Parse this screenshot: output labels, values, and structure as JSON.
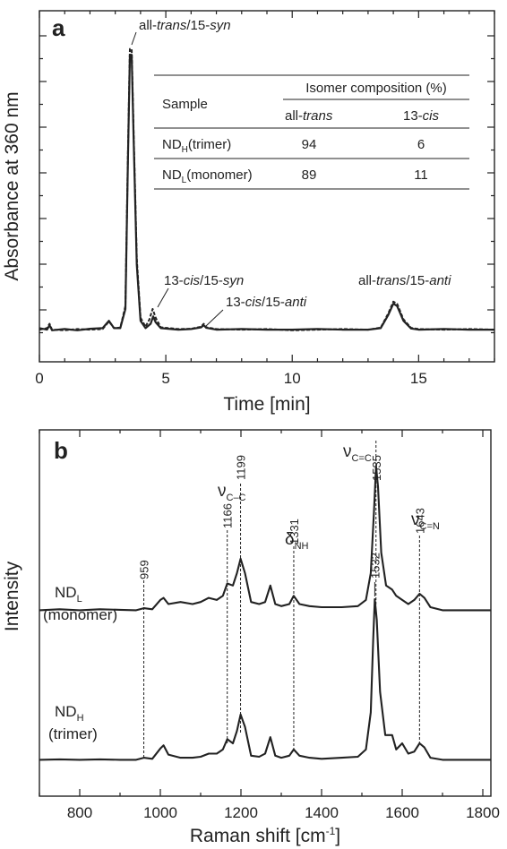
{
  "chart_data": [
    {
      "panel": "a",
      "type": "line",
      "xlabel": "Time [min]",
      "ylabel": "Absorbance at 360 nm",
      "xlim": [
        0,
        18
      ],
      "xticks": [
        "0",
        "5",
        "10",
        "15"
      ],
      "series": [
        {
          "style": "solid",
          "points": [
            [
              0,
              0.035
            ],
            [
              0.3,
              0.03
            ],
            [
              0.4,
              0.045
            ],
            [
              0.5,
              0.028
            ],
            [
              1,
              0.032
            ],
            [
              1.5,
              0.028
            ],
            [
              2,
              0.033
            ],
            [
              2.5,
              0.035
            ],
            [
              2.75,
              0.06
            ],
            [
              2.95,
              0.035
            ],
            [
              3.2,
              0.035
            ],
            [
              3.4,
              0.1
            ],
            [
              3.5,
              0.6
            ],
            [
              3.58,
              0.96
            ],
            [
              3.65,
              0.96
            ],
            [
              3.72,
              0.7
            ],
            [
              3.85,
              0.25
            ],
            [
              4.0,
              0.06
            ],
            [
              4.2,
              0.035
            ],
            [
              4.4,
              0.05
            ],
            [
              4.5,
              0.075
            ],
            [
              4.6,
              0.055
            ],
            [
              4.8,
              0.035
            ],
            [
              5.5,
              0.03
            ],
            [
              6.0,
              0.032
            ],
            [
              6.4,
              0.038
            ],
            [
              6.5,
              0.045
            ],
            [
              6.6,
              0.036
            ],
            [
              7,
              0.03
            ],
            [
              8,
              0.032
            ],
            [
              9,
              0.03
            ],
            [
              10,
              0.03
            ],
            [
              11,
              0.032
            ],
            [
              12,
              0.03
            ],
            [
              13,
              0.03
            ],
            [
              13.5,
              0.035
            ],
            [
              13.8,
              0.08
            ],
            [
              14.0,
              0.118
            ],
            [
              14.15,
              0.11
            ],
            [
              14.4,
              0.06
            ],
            [
              14.7,
              0.034
            ],
            [
              15,
              0.03
            ],
            [
              16,
              0.032
            ],
            [
              17,
              0.03
            ],
            [
              18,
              0.03
            ]
          ]
        },
        {
          "style": "dashed",
          "points": [
            [
              0,
              0.03
            ],
            [
              0.3,
              0.035
            ],
            [
              0.4,
              0.05
            ],
            [
              0.5,
              0.03
            ],
            [
              1,
              0.028
            ],
            [
              1.5,
              0.032
            ],
            [
              2,
              0.03
            ],
            [
              2.5,
              0.032
            ],
            [
              2.75,
              0.058
            ],
            [
              2.95,
              0.035
            ],
            [
              3.2,
              0.037
            ],
            [
              3.4,
              0.11
            ],
            [
              3.5,
              0.62
            ],
            [
              3.58,
              0.98
            ],
            [
              3.65,
              0.98
            ],
            [
              3.72,
              0.72
            ],
            [
              3.85,
              0.27
            ],
            [
              4.0,
              0.07
            ],
            [
              4.2,
              0.04
            ],
            [
              4.35,
              0.065
            ],
            [
              4.48,
              0.1
            ],
            [
              4.6,
              0.07
            ],
            [
              4.8,
              0.038
            ],
            [
              5.5,
              0.032
            ],
            [
              6.0,
              0.033
            ],
            [
              6.4,
              0.04
            ],
            [
              6.5,
              0.05
            ],
            [
              6.6,
              0.038
            ],
            [
              7,
              0.032
            ],
            [
              8,
              0.03
            ],
            [
              9,
              0.032
            ],
            [
              10,
              0.028
            ],
            [
              11,
              0.03
            ],
            [
              12,
              0.032
            ],
            [
              13,
              0.03
            ],
            [
              13.5,
              0.037
            ],
            [
              13.8,
              0.085
            ],
            [
              14.0,
              0.125
            ],
            [
              14.15,
              0.118
            ],
            [
              14.4,
              0.065
            ],
            [
              14.7,
              0.036
            ],
            [
              15,
              0.032
            ],
            [
              16,
              0.03
            ],
            [
              17,
              0.032
            ],
            [
              18,
              0.03
            ]
          ]
        }
      ],
      "annotations": [
        {
          "text": "all-trans/15-syn",
          "x": 3.6
        },
        {
          "text": "13-cis/15-syn",
          "x": 4.5
        },
        {
          "text": "13-cis/15-anti",
          "x": 6.5
        },
        {
          "text": "all-trans/15-anti",
          "x": 14.0
        }
      ],
      "table": {
        "col_sample": "Sample",
        "col_group": "Isomer composition (%)",
        "col_alltrans": "all-trans",
        "col_13cis": "13-cis",
        "rows": [
          {
            "sample_main": "ND",
            "sample_sub": "H",
            "sample_rest": "(trimer)",
            "alltrans": "94",
            "cis13": "6"
          },
          {
            "sample_main": "ND",
            "sample_sub": "L",
            "sample_rest": "(monomer)",
            "alltrans": "89",
            "cis13": "11"
          }
        ]
      }
    },
    {
      "panel": "b",
      "type": "line",
      "xlabel": "Raman shift [cm",
      "xlabel_sup": "-1",
      "xlabel_end": "]",
      "ylabel": "Intensity",
      "xlim": [
        700,
        1820
      ],
      "xticks": [
        "800",
        "1000",
        "1200",
        "1400",
        "1600",
        "1800"
      ],
      "series": [
        {
          "name_main": "ND",
          "name_sub": "L",
          "name_rest": "(monomer)",
          "points": [
            [
              700,
              0.02
            ],
            [
              750,
              0.025
            ],
            [
              800,
              0.02
            ],
            [
              850,
              0.025
            ],
            [
              900,
              0.022
            ],
            [
              940,
              0.02
            ],
            [
              959,
              0.03
            ],
            [
              980,
              0.025
            ],
            [
              1000,
              0.07
            ],
            [
              1008,
              0.08
            ],
            [
              1020,
              0.05
            ],
            [
              1050,
              0.06
            ],
            [
              1080,
              0.05
            ],
            [
              1100,
              0.06
            ],
            [
              1120,
              0.08
            ],
            [
              1140,
              0.07
            ],
            [
              1155,
              0.09
            ],
            [
              1166,
              0.15
            ],
            [
              1180,
              0.14
            ],
            [
              1190,
              0.2
            ],
            [
              1199,
              0.27
            ],
            [
              1210,
              0.2
            ],
            [
              1225,
              0.06
            ],
            [
              1245,
              0.05
            ],
            [
              1260,
              0.06
            ],
            [
              1273,
              0.14
            ],
            [
              1285,
              0.05
            ],
            [
              1300,
              0.04
            ],
            [
              1320,
              0.05
            ],
            [
              1331,
              0.09
            ],
            [
              1345,
              0.05
            ],
            [
              1370,
              0.04
            ],
            [
              1400,
              0.035
            ],
            [
              1450,
              0.035
            ],
            [
              1490,
              0.04
            ],
            [
              1510,
              0.07
            ],
            [
              1522,
              0.2
            ],
            [
              1530,
              0.5
            ],
            [
              1535,
              0.72
            ],
            [
              1540,
              0.62
            ],
            [
              1548,
              0.3
            ],
            [
              1560,
              0.14
            ],
            [
              1575,
              0.12
            ],
            [
              1585,
              0.09
            ],
            [
              1600,
              0.07
            ],
            [
              1615,
              0.05
            ],
            [
              1630,
              0.07
            ],
            [
              1643,
              0.1
            ],
            [
              1655,
              0.08
            ],
            [
              1670,
              0.035
            ],
            [
              1700,
              0.02
            ],
            [
              1750,
              0.02
            ],
            [
              1800,
              0.02
            ],
            [
              1820,
              0.02
            ]
          ]
        },
        {
          "name_main": "ND",
          "name_sub": "H",
          "name_rest": "(trimer)",
          "points": [
            [
              700,
              0.02
            ],
            [
              750,
              0.022
            ],
            [
              800,
              0.02
            ],
            [
              850,
              0.022
            ],
            [
              900,
              0.02
            ],
            [
              940,
              0.02
            ],
            [
              959,
              0.03
            ],
            [
              980,
              0.025
            ],
            [
              1000,
              0.075
            ],
            [
              1008,
              0.09
            ],
            [
              1020,
              0.045
            ],
            [
              1050,
              0.03
            ],
            [
              1080,
              0.03
            ],
            [
              1100,
              0.035
            ],
            [
              1120,
              0.05
            ],
            [
              1140,
              0.05
            ],
            [
              1155,
              0.07
            ],
            [
              1166,
              0.12
            ],
            [
              1180,
              0.1
            ],
            [
              1190,
              0.16
            ],
            [
              1199,
              0.24
            ],
            [
              1210,
              0.18
            ],
            [
              1225,
              0.04
            ],
            [
              1245,
              0.035
            ],
            [
              1260,
              0.05
            ],
            [
              1273,
              0.13
            ],
            [
              1285,
              0.04
            ],
            [
              1300,
              0.03
            ],
            [
              1320,
              0.04
            ],
            [
              1331,
              0.07
            ],
            [
              1345,
              0.04
            ],
            [
              1370,
              0.03
            ],
            [
              1400,
              0.025
            ],
            [
              1450,
              0.03
            ],
            [
              1490,
              0.035
            ],
            [
              1510,
              0.07
            ],
            [
              1522,
              0.25
            ],
            [
              1528,
              0.6
            ],
            [
              1532,
              0.8
            ],
            [
              1537,
              0.7
            ],
            [
              1545,
              0.35
            ],
            [
              1558,
              0.14
            ],
            [
              1575,
              0.14
            ],
            [
              1585,
              0.07
            ],
            [
              1600,
              0.1
            ],
            [
              1615,
              0.05
            ],
            [
              1630,
              0.06
            ],
            [
              1643,
              0.1
            ],
            [
              1655,
              0.08
            ],
            [
              1670,
              0.03
            ],
            [
              1700,
              0.02
            ],
            [
              1750,
              0.02
            ],
            [
              1800,
              0.02
            ],
            [
              1820,
              0.02
            ]
          ]
        }
      ],
      "peak_labels": [
        "959",
        "1166",
        "1199",
        "1331",
        "1535",
        "1643",
        "1532"
      ],
      "modes": [
        {
          "symbol": "ν",
          "sub": "C–C"
        },
        {
          "symbol": "δ",
          "sub": "NH"
        },
        {
          "symbol": "ν",
          "sub": "C=C"
        },
        {
          "symbol": "ν",
          "sub": "C=N"
        }
      ]
    }
  ]
}
